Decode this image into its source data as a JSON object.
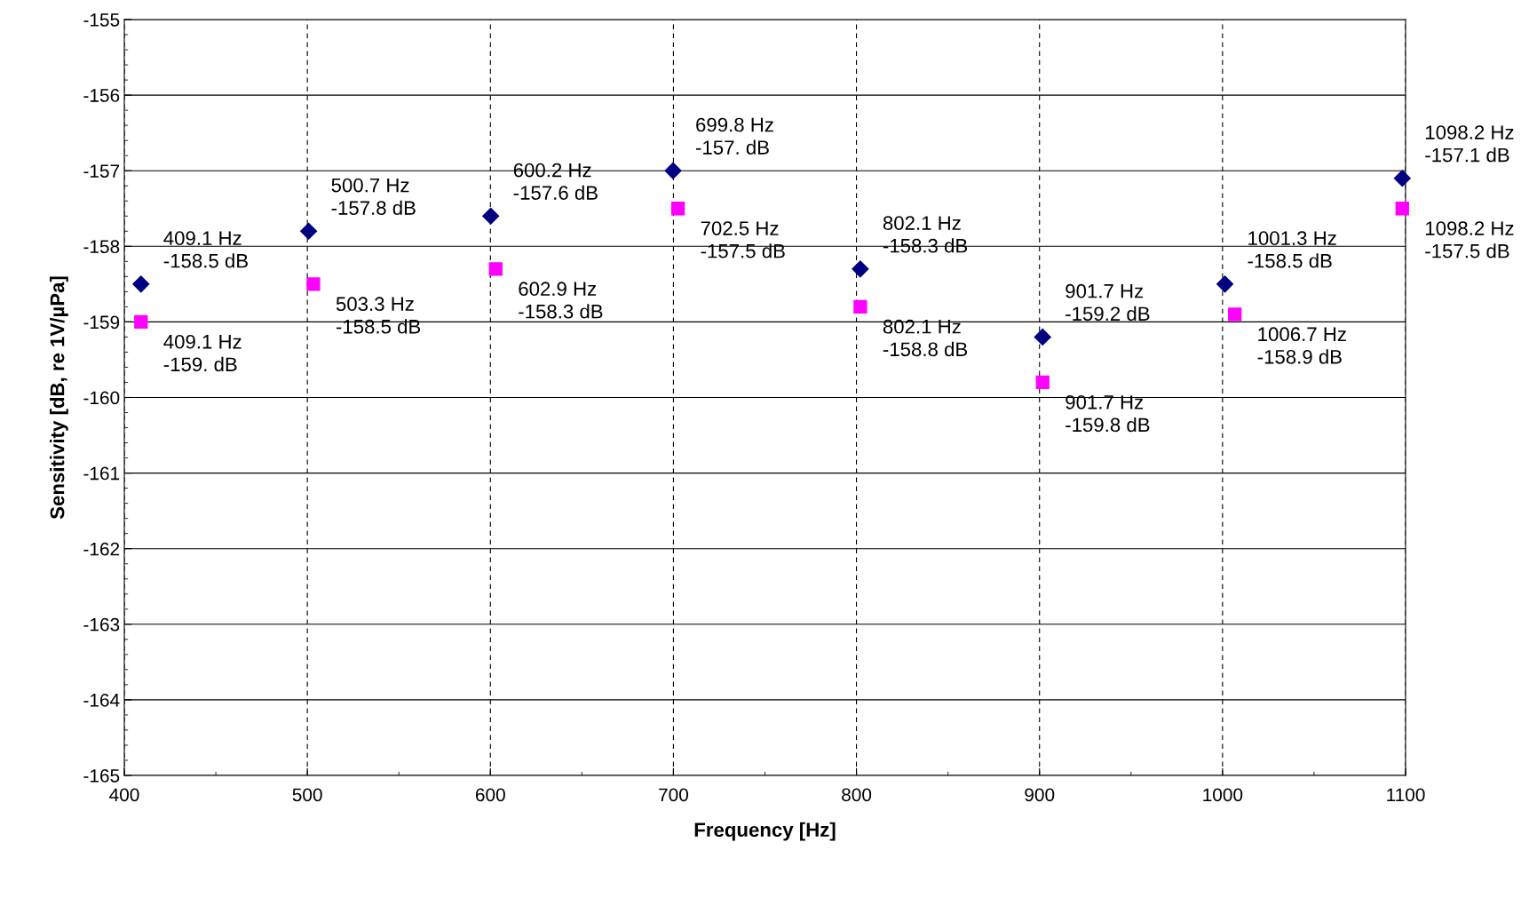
{
  "chart_data": {
    "type": "scatter",
    "xlabel": "Frequency [Hz]",
    "ylabel": "Sensitivity [dB, re 1V/µPa]",
    "xlim": [
      400,
      1100
    ],
    "xticks": [
      400,
      500,
      600,
      700,
      800,
      900,
      1000,
      1100
    ],
    "ylim": [
      -165,
      -155
    ],
    "yticks": [
      -165,
      -164,
      -163,
      -162,
      -161,
      -160,
      -159,
      -158,
      -157,
      -156,
      -155
    ],
    "grid": true,
    "series": [
      {
        "color": "#000080",
        "marker": "diamond",
        "x": [
          409.1,
          500.7,
          600.2,
          699.8,
          802.1,
          901.7,
          1001.3,
          1098.2
        ],
        "values": [
          -158.5,
          -157.8,
          -157.6,
          -157.0,
          -158.3,
          -159.2,
          -158.5,
          -157.1
        ]
      },
      {
        "color": "#ff00ff",
        "marker": "square",
        "x": [
          409.1,
          503.3,
          602.9,
          702.5,
          802.1,
          901.7,
          1006.7,
          1098.2
        ],
        "values": [
          -159.0,
          -158.5,
          -158.3,
          -157.5,
          -158.8,
          -159.8,
          -158.9,
          -157.5
        ]
      }
    ],
    "annotations": [
      {
        "text": "409.1 Hz\n-158.5 dB",
        "x": 409.1,
        "y": -158.5
      },
      {
        "text": "500.7 Hz\n-157.8 dB",
        "x": 500.7,
        "y": -157.8
      },
      {
        "text": "600.2 Hz\n-157.6 dB",
        "x": 600.2,
        "y": -157.6
      },
      {
        "text": "699.8 Hz\n-157. dB",
        "x": 699.8,
        "y": -157.0
      },
      {
        "text": "802.1 Hz\n-158.3 dB",
        "x": 802.1,
        "y": -158.3
      },
      {
        "text": "901.7 Hz\n-159.2 dB",
        "x": 901.7,
        "y": -159.2
      },
      {
        "text": "1001.3 Hz\n-158.5 dB",
        "x": 1001.3,
        "y": -158.5
      },
      {
        "text": "1098.2 Hz\n-157.1 dB",
        "x": 1098.2,
        "y": -157.1
      },
      {
        "text": "409.1 Hz\n-159. dB",
        "x": 409.1,
        "y": -159.0
      },
      {
        "text": "503.3 Hz\n-158.5 dB",
        "x": 503.3,
        "y": -158.5
      },
      {
        "text": "602.9 Hz\n-158.3 dB",
        "x": 602.9,
        "y": -158.3
      },
      {
        "text": "702.5 Hz\n-157.5 dB",
        "x": 702.5,
        "y": -157.5
      },
      {
        "text": "802.1 Hz\n-158.8 dB",
        "x": 802.1,
        "y": -158.8
      },
      {
        "text": "901.7 Hz\n-159.8 dB",
        "x": 901.7,
        "y": -159.8
      },
      {
        "text": "1006.7 Hz\n-158.9 dB",
        "x": 1006.7,
        "y": -158.9
      },
      {
        "text": "1098.2 Hz\n-157.5 dB",
        "x": 1098.2,
        "y": -157.5
      }
    ]
  }
}
